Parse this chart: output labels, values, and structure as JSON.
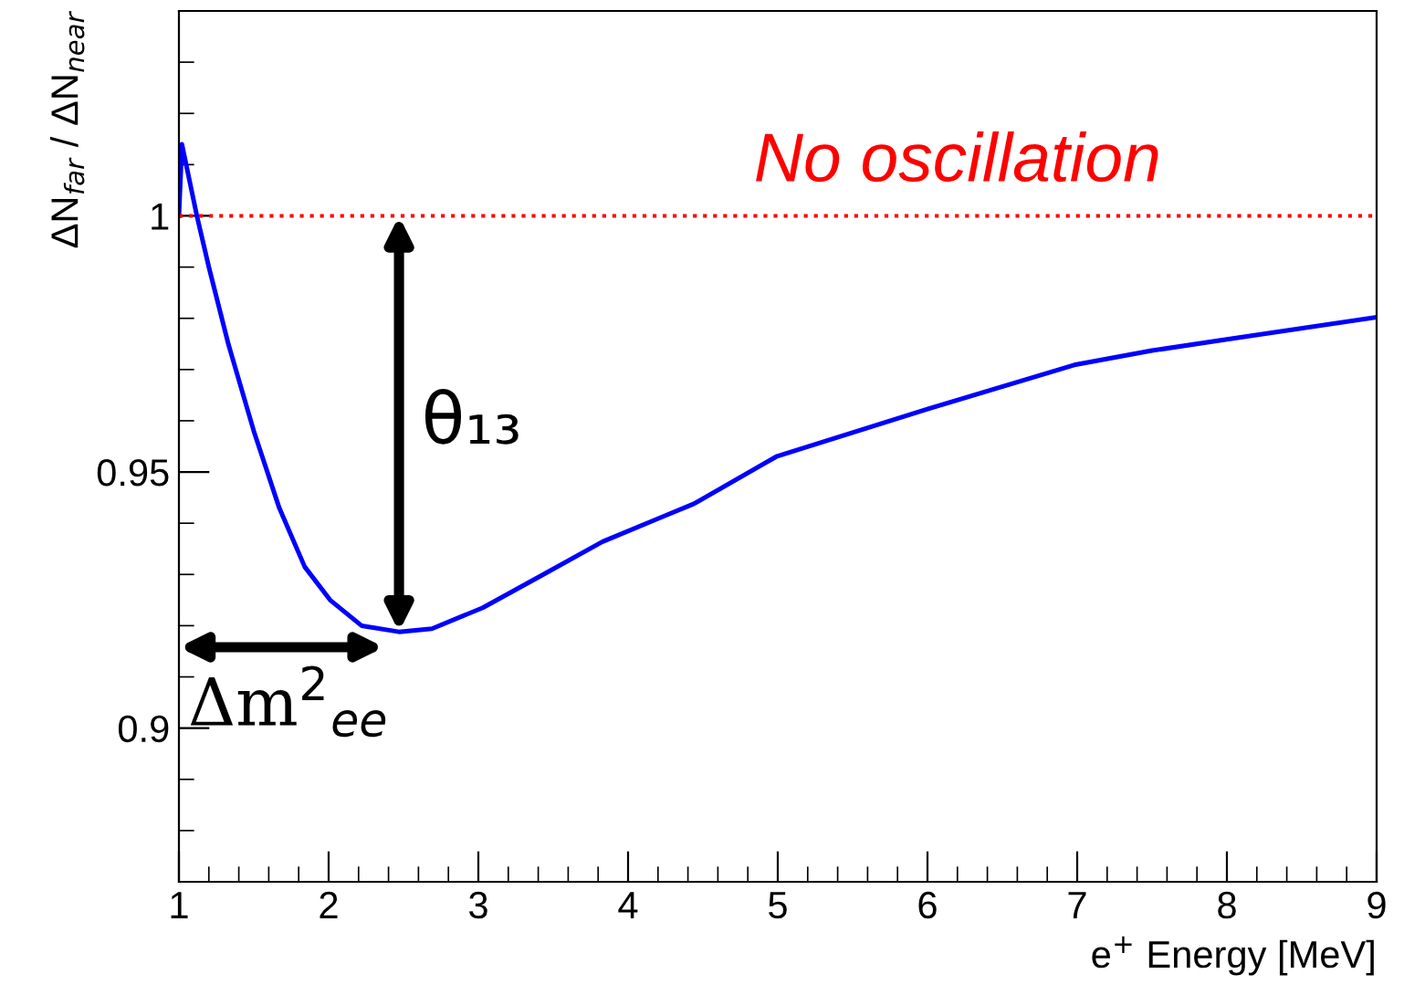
{
  "chart_data": {
    "type": "line",
    "xlabel": "e$^{+}$ Energy [MeV]",
    "ylabel": "ΔN$_{far}$ / ΔN$_{near}$",
    "x": [
      1.0,
      1.02,
      1.12,
      1.2,
      1.33,
      1.5,
      1.67,
      1.84,
      2.01,
      2.22,
      2.47,
      2.69,
      3.03,
      3.41,
      3.83,
      4.25,
      4.44,
      4.99,
      5.5,
      6.0,
      6.98,
      7.5,
      8.0,
      9.0
    ],
    "series": [
      {
        "color": "#0000ff",
        "values": [
          1.0,
          1.014,
          1.0,
          0.99,
          0.975,
          0.958,
          0.943,
          0.9315,
          0.925,
          0.92,
          0.9188,
          0.9194,
          0.9235,
          0.9296,
          0.9364,
          0.9415,
          0.9438,
          0.953,
          0.9577,
          0.9623,
          0.9709,
          0.9737,
          0.9759,
          0.9802
        ]
      }
    ],
    "xlim": [
      1,
      9
    ],
    "ylim": [
      0.87,
      1.04
    ],
    "xticks": [
      1,
      2,
      3,
      4,
      5,
      6,
      7,
      8,
      9
    ],
    "yticks": [
      0.9,
      0.95,
      1
    ],
    "ref_lines": [
      {
        "axis": "y",
        "value": 1,
        "label": "No oscillation",
        "color": "#ff0000",
        "line_style": "dotted"
      }
    ],
    "annotations": [
      "θ₁₃",
      "Δm$^{2}$$_{ee}$"
    ],
    "grid": false,
    "marker": "none",
    "line_style": "solid"
  }
}
